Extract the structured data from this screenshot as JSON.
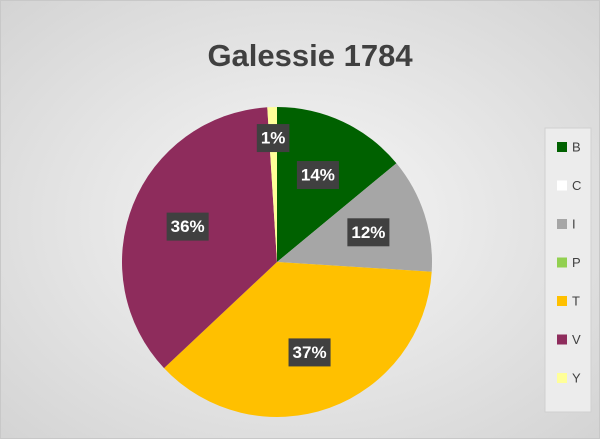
{
  "chart_data": {
    "type": "pie",
    "title": "Galessie 1784",
    "categories": [
      "B",
      "C",
      "I",
      "P",
      "T",
      "V",
      "Y"
    ],
    "values": [
      14,
      0,
      12,
      0,
      37,
      36,
      1
    ],
    "value_labels": [
      "14%",
      null,
      "12%",
      null,
      "37%",
      "36%",
      "1%"
    ],
    "colors": [
      "#006100",
      "#ffffff",
      "#a6a6a6",
      "#92d050",
      "#ffc000",
      "#8e2c5c",
      "#ffff99"
    ],
    "legend": "right"
  }
}
